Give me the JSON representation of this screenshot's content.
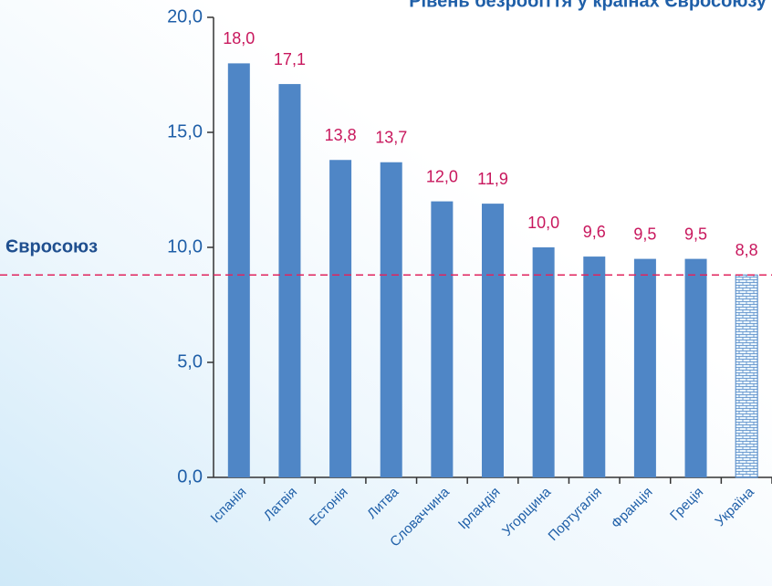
{
  "chart_data": {
    "type": "bar",
    "title": "Рівень безробіття у країнах Євросоюзу",
    "categories": [
      "Іспанія",
      "Латвія",
      "Естонія",
      "Литва",
      "Словаччина",
      "Ірландія",
      "Угорщина",
      "Португалія",
      "Франція",
      "Греція",
      "Україна"
    ],
    "values": [
      18.0,
      17.1,
      13.8,
      13.7,
      12.0,
      11.9,
      10.0,
      9.6,
      9.5,
      9.5,
      8.8
    ],
    "value_labels": [
      "18,0",
      "17,1",
      "13,8",
      "13,7",
      "12,0",
      "11,9",
      "10,0",
      "9,6",
      "9,5",
      "9,5",
      "8,8"
    ],
    "color": "#4f86c6",
    "patterns": [
      null,
      null,
      null,
      null,
      null,
      null,
      null,
      null,
      null,
      null,
      "brick"
    ],
    "ylim": [
      0,
      20
    ],
    "yticks": [
      {
        "value": 0,
        "label": "0,0"
      },
      {
        "value": 5,
        "label": "5,0"
      },
      {
        "value": 10,
        "label": "10,0"
      },
      {
        "value": 15,
        "label": "15,0"
      },
      {
        "value": 20,
        "label": "20,0"
      }
    ],
    "reference_line": {
      "label": "Євросоюз",
      "value": 8.8,
      "color": "#e0245e"
    },
    "grid": false
  }
}
